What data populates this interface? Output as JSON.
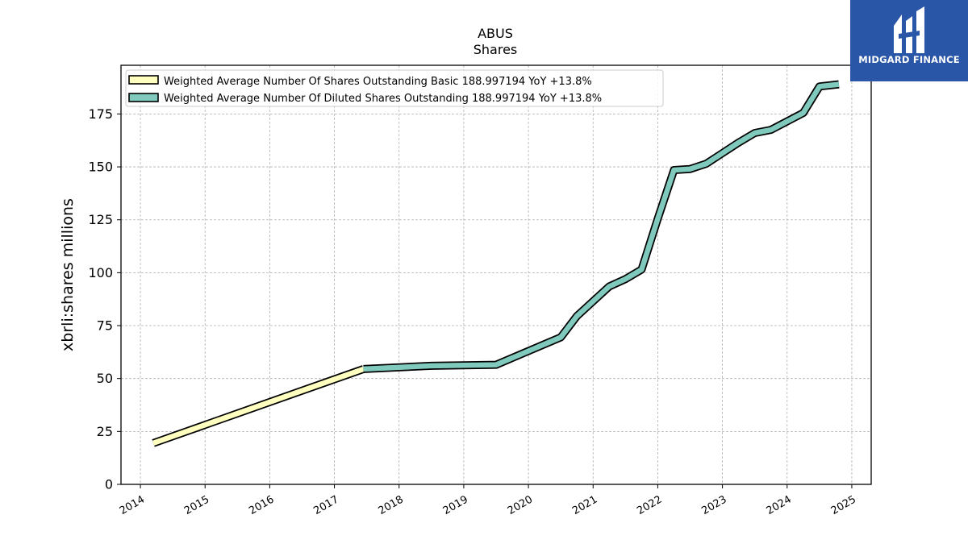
{
  "logo": {
    "text": "MIDGARD FINANCE",
    "color": "#2a56a8"
  },
  "chart_data": {
    "type": "line",
    "title": "ABUS",
    "subtitle": "Shares",
    "ylabel": "xbrli:shares millions",
    "xlim": [
      2013.7,
      2025.3
    ],
    "ylim": [
      0,
      198
    ],
    "yticks": [
      0,
      25,
      50,
      75,
      100,
      125,
      150,
      175
    ],
    "xticks": [
      2014,
      2015,
      2016,
      2017,
      2018,
      2019,
      2020,
      2021,
      2022,
      2023,
      2024,
      2025
    ],
    "grid": true,
    "legend_position": "top-left",
    "series": [
      {
        "name": "Weighted Average Number Of Shares Outstanding Basic  188.997194 YoY +13.8%",
        "color": "#ffffbf",
        "x": [
          2014.2,
          2017.45
        ],
        "y": [
          19.5,
          54.5
        ]
      },
      {
        "name": "Weighted Average Number Of Diluted Shares Outstanding  188.997194 YoY +13.8%",
        "color": "#7fc9bd",
        "x": [
          2017.45,
          2018.5,
          2019.5,
          2020.5,
          2020.75,
          2021.25,
          2021.5,
          2021.75,
          2022.0,
          2022.25,
          2022.5,
          2022.75,
          2023.0,
          2023.25,
          2023.5,
          2023.75,
          2024.0,
          2024.25,
          2024.5,
          2024.8
        ],
        "y": [
          54.5,
          56.0,
          56.5,
          69.5,
          79.5,
          93.5,
          97.0,
          101.5,
          125.5,
          148.5,
          149.0,
          151.5,
          156.5,
          161.5,
          166.0,
          167.5,
          171.5,
          175.5,
          188.0,
          189.0
        ]
      }
    ]
  }
}
